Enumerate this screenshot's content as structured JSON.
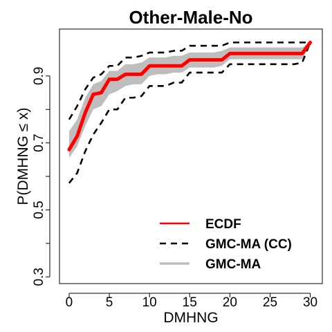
{
  "chart_data": {
    "type": "line",
    "title": "Other-Male-No",
    "xlabel": "DMHNG",
    "ylabel": "P(DMHNG ≤ x)",
    "xlim": [
      -1.2,
      31.5
    ],
    "ylim": [
      0.28,
      1.04
    ],
    "x_ticks": [
      0,
      5,
      10,
      15,
      20,
      25,
      30
    ],
    "y_ticks": [
      0.3,
      0.4,
      0.5,
      0.6,
      0.7,
      0.8,
      0.9
    ],
    "y_tick_labels": [
      {
        "value": 0.3,
        "label": "0.3"
      },
      {
        "value": 0.5,
        "label": "0.5"
      },
      {
        "value": 0.7,
        "label": "0.7"
      },
      {
        "value": 0.9,
        "label": "0.9"
      }
    ],
    "grid": false,
    "legend_position": "bottom-right",
    "series": [
      {
        "name": "ECDF",
        "style": "solid",
        "color": "#ff0000",
        "x": [
          0,
          1,
          2,
          3,
          4,
          5,
          6,
          7,
          8,
          9,
          10,
          11,
          12,
          13,
          14,
          15,
          16,
          17,
          18,
          19,
          20,
          21,
          22,
          23,
          24,
          25,
          26,
          27,
          28,
          29,
          30
        ],
        "y": [
          0.68,
          0.72,
          0.79,
          0.845,
          0.85,
          0.89,
          0.89,
          0.905,
          0.905,
          0.905,
          0.93,
          0.93,
          0.93,
          0.93,
          0.93,
          0.948,
          0.948,
          0.948,
          0.948,
          0.948,
          0.967,
          0.967,
          0.967,
          0.967,
          0.967,
          0.967,
          0.967,
          0.967,
          0.967,
          0.967,
          1.0
        ]
      },
      {
        "name": "GMC-MA (CC)",
        "style": "dashed",
        "color": "#000000",
        "x": [
          0,
          1,
          2,
          3,
          4,
          5,
          6,
          7,
          8,
          9,
          10,
          11,
          12,
          13,
          14,
          15,
          16,
          17,
          18,
          19,
          20,
          21,
          22,
          23,
          24,
          25,
          26,
          27,
          28,
          29,
          30
        ],
        "lower": [
          0.58,
          0.61,
          0.675,
          0.725,
          0.76,
          0.8,
          0.8,
          0.835,
          0.835,
          0.84,
          0.87,
          0.87,
          0.87,
          0.88,
          0.88,
          0.91,
          0.91,
          0.91,
          0.91,
          0.91,
          0.935,
          0.935,
          0.935,
          0.935,
          0.935,
          0.935,
          0.935,
          0.935,
          0.935,
          0.94,
          1.0
        ],
        "upper": [
          0.77,
          0.81,
          0.86,
          0.895,
          0.905,
          0.93,
          0.93,
          0.955,
          0.955,
          0.96,
          0.97,
          0.97,
          0.97,
          0.975,
          0.975,
          0.99,
          0.99,
          0.99,
          0.99,
          0.99,
          1.0,
          1.0,
          1.0,
          1.0,
          1.0,
          1.0,
          1.0,
          1.0,
          1.0,
          1.0,
          1.0
        ]
      },
      {
        "name": "GMC-MA",
        "style": "band",
        "color": "#bebebe",
        "x": [
          0,
          1,
          2,
          3,
          4,
          5,
          6,
          7,
          8,
          9,
          10,
          11,
          12,
          13,
          14,
          15,
          16,
          17,
          18,
          19,
          20,
          21,
          22,
          23,
          24,
          25,
          26,
          27,
          28,
          29,
          30
        ],
        "lower": [
          0.655,
          0.69,
          0.75,
          0.8,
          0.81,
          0.845,
          0.855,
          0.87,
          0.875,
          0.875,
          0.9,
          0.905,
          0.905,
          0.91,
          0.91,
          0.925,
          0.925,
          0.925,
          0.925,
          0.93,
          0.95,
          0.95,
          0.95,
          0.95,
          0.95,
          0.95,
          0.95,
          0.95,
          0.95,
          0.95,
          0.995
        ],
        "upper": [
          0.735,
          0.77,
          0.835,
          0.875,
          0.885,
          0.915,
          0.915,
          0.935,
          0.935,
          0.94,
          0.955,
          0.955,
          0.955,
          0.96,
          0.96,
          0.97,
          0.97,
          0.97,
          0.97,
          0.975,
          0.985,
          0.985,
          0.985,
          0.985,
          0.985,
          0.985,
          0.985,
          0.985,
          0.985,
          0.985,
          1.0
        ]
      }
    ]
  }
}
